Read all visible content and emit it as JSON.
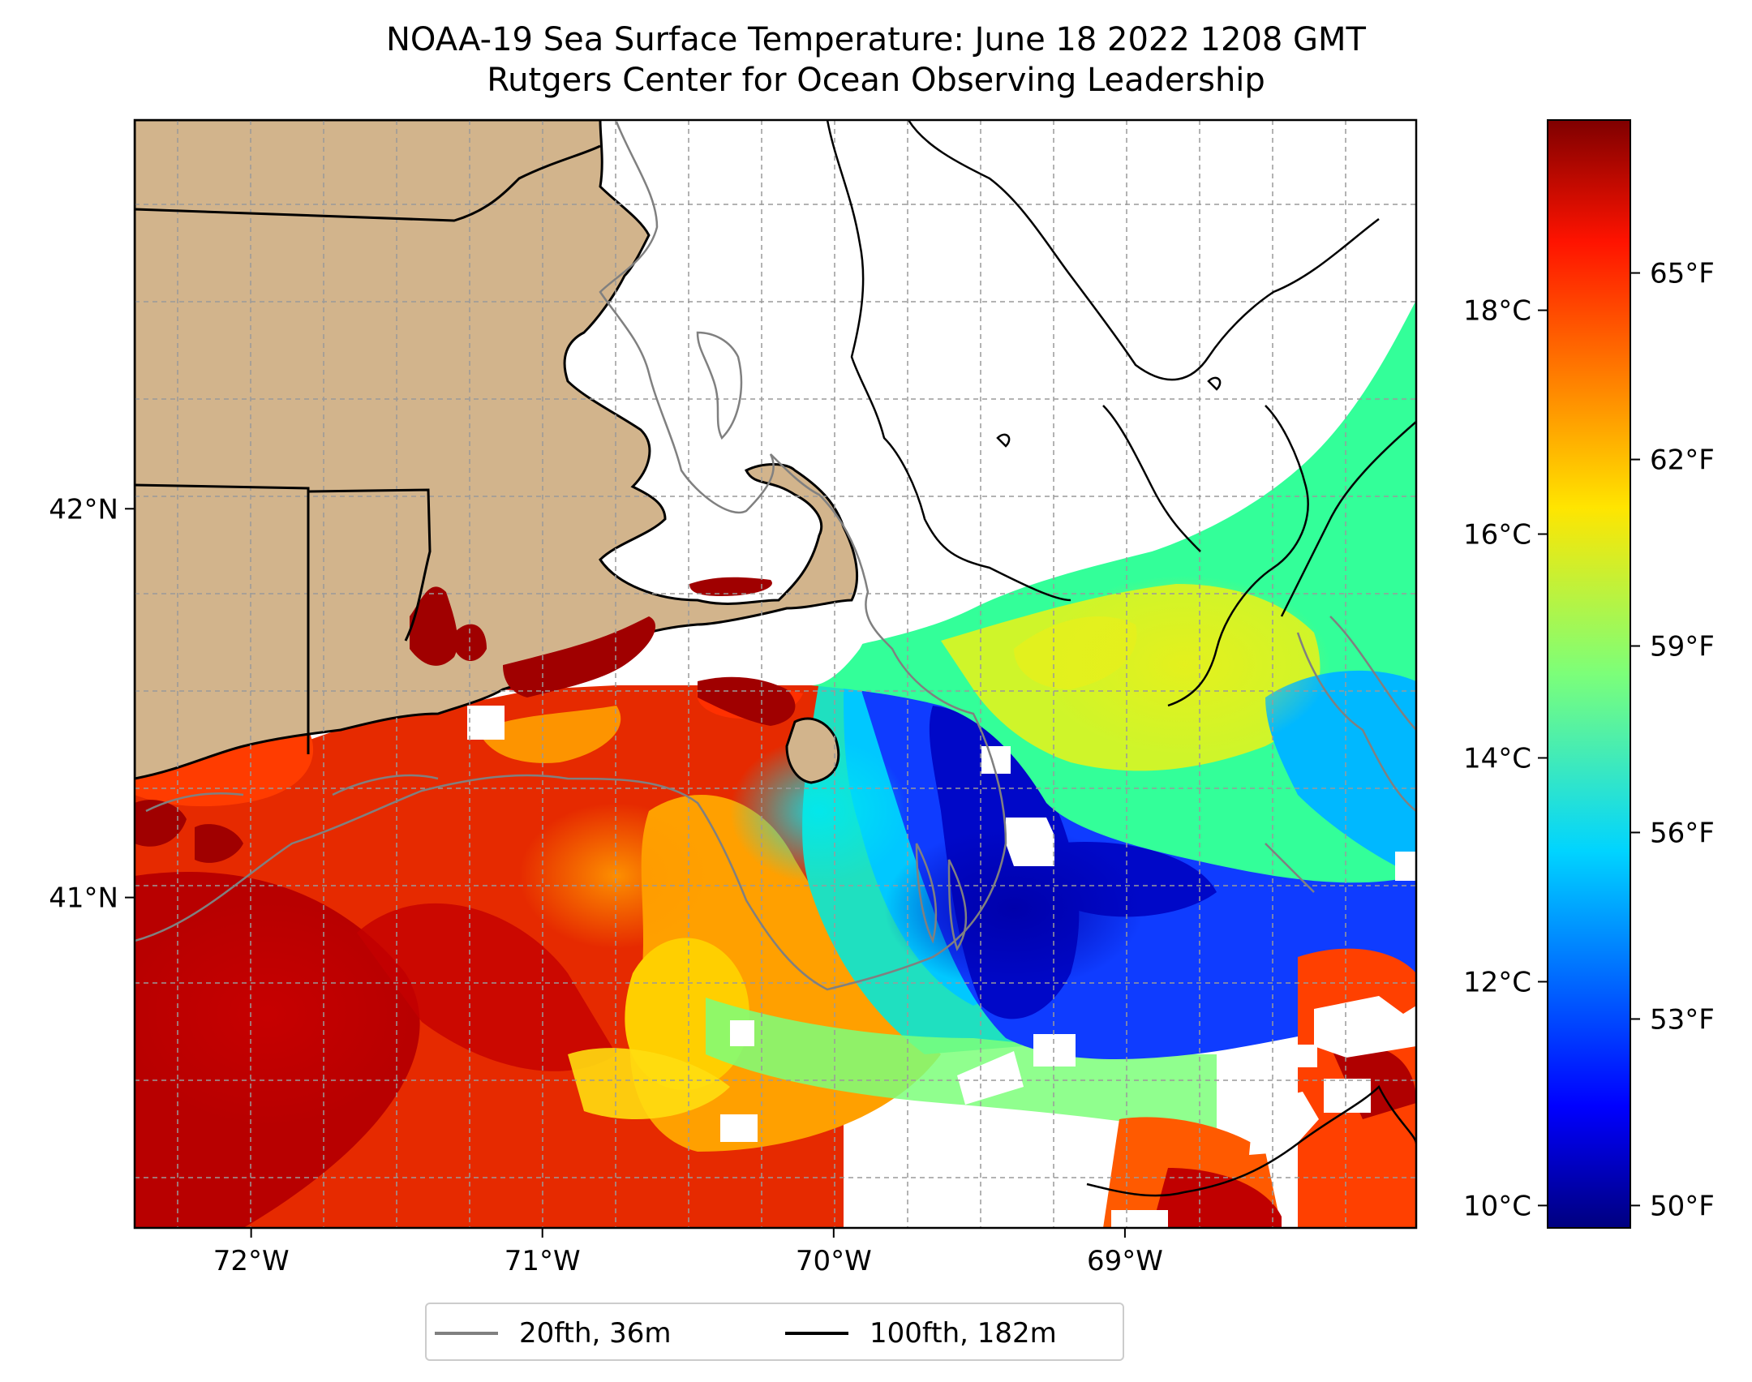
{
  "title": {
    "line1": "NOAA-19 Sea Surface Temperature: June 18 2022 1208 GMT",
    "line2": "Rutgers Center for Ocean Observing Leadership"
  },
  "map": {
    "lon_ticks": [
      {
        "value": -72,
        "label": "72°W"
      },
      {
        "value": -71,
        "label": "71°W"
      },
      {
        "value": -70,
        "label": "70°W"
      },
      {
        "value": -69,
        "label": "69°W"
      }
    ],
    "lat_ticks": [
      {
        "value": 42,
        "label": "42°N"
      },
      {
        "value": 41,
        "label": "41°N"
      }
    ],
    "lon_range": [
      -72.4,
      -68.0
    ],
    "lat_range": [
      40.15,
      43.0
    ],
    "land_color": "#d2b48c",
    "no_data_color": "#ffffff",
    "grid": true,
    "grid_style": "dashed"
  },
  "colorbar": {
    "colormap": "jet",
    "range_celsius": [
      9.8,
      19.7
    ],
    "celsius_ticks": [
      {
        "value": 10,
        "label": "10°C"
      },
      {
        "value": 12,
        "label": "12°C"
      },
      {
        "value": 14,
        "label": "14°C"
      },
      {
        "value": 16,
        "label": "16°C"
      },
      {
        "value": 18,
        "label": "18°C"
      }
    ],
    "fahrenheit_ticks": [
      {
        "value": 50,
        "label": "50°F"
      },
      {
        "value": 53,
        "label": "53°F"
      },
      {
        "value": 56,
        "label": "56°F"
      },
      {
        "value": 59,
        "label": "59°F"
      },
      {
        "value": 62,
        "label": "62°F"
      },
      {
        "value": 65,
        "label": "65°F"
      }
    ]
  },
  "legend": {
    "placement": "bottom-center",
    "items": [
      {
        "label": "20fth, 36m",
        "color": "#808080"
      },
      {
        "label": "100fth, 182m",
        "color": "#000000"
      }
    ]
  }
}
